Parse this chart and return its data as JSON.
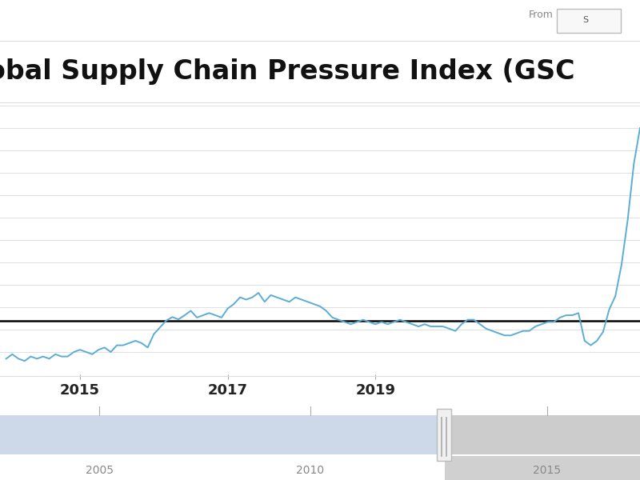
{
  "title": "obal Supply Chain Pressure Index (GSC",
  "title_fontsize": 24,
  "title_fontweight": "bold",
  "bg_color": "#ffffff",
  "line_color": "#5badd6",
  "zero_line_color": "#000000",
  "grid_color": "#e0e0e0",
  "x_tick_labels": [
    "2015",
    "2017",
    "2019"
  ],
  "nav_bar_color": "#cdd8e8",
  "nav_bar_gray": "#cccccc",
  "from_label": "From",
  "series": [
    -0.85,
    -0.75,
    -0.85,
    -0.9,
    -0.8,
    -0.85,
    -0.8,
    -0.85,
    -0.75,
    -0.8,
    -0.8,
    -0.7,
    -0.65,
    -0.7,
    -0.75,
    -0.65,
    -0.6,
    -0.7,
    -0.55,
    -0.55,
    -0.5,
    -0.45,
    -0.5,
    -0.6,
    -0.3,
    -0.15,
    0.0,
    0.08,
    0.03,
    0.12,
    0.22,
    0.07,
    0.12,
    0.17,
    0.12,
    0.07,
    0.27,
    0.37,
    0.52,
    0.47,
    0.52,
    0.62,
    0.42,
    0.57,
    0.52,
    0.47,
    0.42,
    0.52,
    0.47,
    0.42,
    0.37,
    0.32,
    0.22,
    0.07,
    0.02,
    -0.03,
    -0.08,
    -0.03,
    0.02,
    -0.03,
    -0.08,
    -0.03,
    -0.08,
    -0.03,
    0.02,
    -0.03,
    -0.08,
    -0.13,
    -0.08,
    -0.13,
    -0.13,
    -0.13,
    -0.18,
    -0.23,
    -0.08,
    0.02,
    0.02,
    -0.08,
    -0.18,
    -0.23,
    -0.28,
    -0.33,
    -0.33,
    -0.28,
    -0.23,
    -0.23,
    -0.13,
    -0.08,
    -0.03,
    -0.03,
    0.07,
    0.12,
    0.12,
    0.17,
    -0.45,
    -0.55,
    -0.45,
    -0.25,
    0.25,
    0.55,
    1.25,
    2.25,
    3.5,
    4.3
  ],
  "ylim": [
    -1.2,
    4.8
  ],
  "xlim": [
    -1,
    103
  ],
  "x_tick_positions": [
    12,
    36,
    60
  ]
}
